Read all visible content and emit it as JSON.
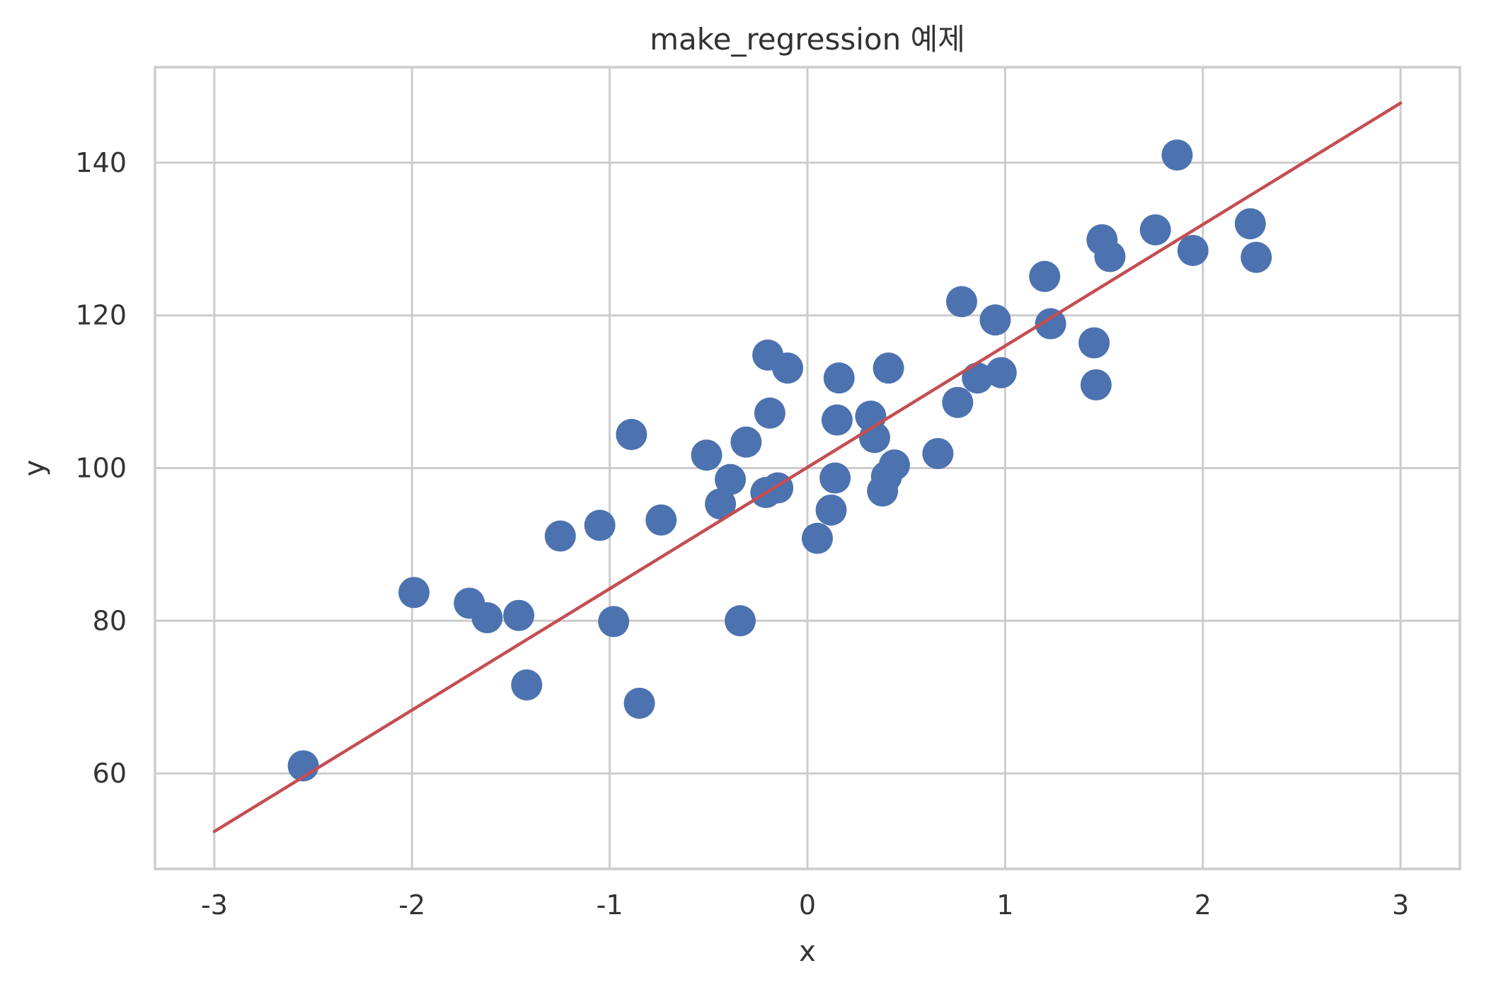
{
  "chart_data": {
    "type": "scatter",
    "title": "make_regression 예제",
    "xlabel": "x",
    "ylabel": "y",
    "xlim": [
      -3.3,
      3.3
    ],
    "ylim": [
      47.5,
      152.5
    ],
    "xticks": [
      -3,
      -2,
      -1,
      0,
      1,
      2,
      3
    ],
    "yticks": [
      60,
      80,
      100,
      120,
      140
    ],
    "xtick_labels": [
      "-3",
      "-2",
      "-1",
      "0",
      "1",
      "2",
      "3"
    ],
    "ytick_labels": [
      "60",
      "80",
      "100",
      "120",
      "140"
    ],
    "grid": true,
    "point_color": "#4c72b0",
    "line_color": "#c44e52",
    "points": [
      {
        "x": -2.55,
        "y": 61.0
      },
      {
        "x": -1.99,
        "y": 83.7
      },
      {
        "x": -1.71,
        "y": 82.3
      },
      {
        "x": -1.62,
        "y": 80.4
      },
      {
        "x": -1.46,
        "y": 80.7
      },
      {
        "x": -1.42,
        "y": 71.6
      },
      {
        "x": -1.25,
        "y": 91.1
      },
      {
        "x": -1.05,
        "y": 92.5
      },
      {
        "x": -0.98,
        "y": 79.9
      },
      {
        "x": -0.89,
        "y": 104.4
      },
      {
        "x": -0.85,
        "y": 69.2
      },
      {
        "x": -0.74,
        "y": 93.2
      },
      {
        "x": -0.51,
        "y": 101.7
      },
      {
        "x": -0.44,
        "y": 95.3
      },
      {
        "x": -0.39,
        "y": 98.5
      },
      {
        "x": -0.34,
        "y": 80.0
      },
      {
        "x": -0.31,
        "y": 103.4
      },
      {
        "x": -0.21,
        "y": 96.8
      },
      {
        "x": -0.2,
        "y": 114.8
      },
      {
        "x": -0.19,
        "y": 107.2
      },
      {
        "x": -0.15,
        "y": 97.4
      },
      {
        "x": -0.1,
        "y": 113.1
      },
      {
        "x": 0.05,
        "y": 90.8
      },
      {
        "x": 0.12,
        "y": 94.5
      },
      {
        "x": 0.14,
        "y": 98.7
      },
      {
        "x": 0.15,
        "y": 106.3
      },
      {
        "x": 0.16,
        "y": 111.8
      },
      {
        "x": 0.32,
        "y": 106.8
      },
      {
        "x": 0.34,
        "y": 104.0
      },
      {
        "x": 0.38,
        "y": 97.0
      },
      {
        "x": 0.4,
        "y": 98.9
      },
      {
        "x": 0.41,
        "y": 113.1
      },
      {
        "x": 0.44,
        "y": 100.4
      },
      {
        "x": 0.66,
        "y": 101.9
      },
      {
        "x": 0.76,
        "y": 108.6
      },
      {
        "x": 0.78,
        "y": 121.8
      },
      {
        "x": 0.86,
        "y": 111.8
      },
      {
        "x": 0.95,
        "y": 119.4
      },
      {
        "x": 0.98,
        "y": 112.5
      },
      {
        "x": 1.2,
        "y": 125.1
      },
      {
        "x": 1.23,
        "y": 118.9
      },
      {
        "x": 1.45,
        "y": 116.4
      },
      {
        "x": 1.46,
        "y": 110.9
      },
      {
        "x": 1.49,
        "y": 129.9
      },
      {
        "x": 1.53,
        "y": 127.7
      },
      {
        "x": 1.76,
        "y": 131.2
      },
      {
        "x": 1.87,
        "y": 141.0
      },
      {
        "x": 1.95,
        "y": 128.5
      },
      {
        "x": 2.24,
        "y": 132.0
      },
      {
        "x": 2.27,
        "y": 127.6
      }
    ],
    "fit_line": {
      "x": [
        -3,
        3
      ],
      "y": [
        52.4,
        147.8
      ]
    }
  }
}
